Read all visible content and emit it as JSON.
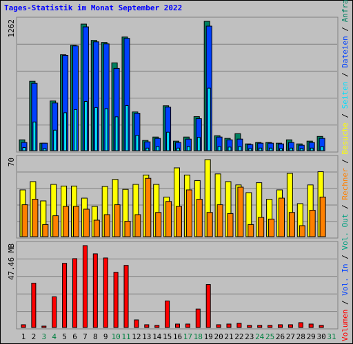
{
  "title": "Tages-Statistik im Monat September 2022",
  "categories": [
    "1",
    "2",
    "3",
    "4",
    "5",
    "6",
    "7",
    "8",
    "9",
    "10",
    "11",
    "12",
    "13",
    "14",
    "15",
    "16",
    "17",
    "18",
    "19",
    "20",
    "21",
    "22",
    "23",
    "24",
    "25",
    "26",
    "27",
    "28",
    "29",
    "30",
    "31"
  ],
  "category_colors": [
    "#000000",
    "#000000",
    "#008040",
    "#008040",
    "#000000",
    "#000000",
    "#000000",
    "#000000",
    "#000000",
    "#008040",
    "#008040",
    "#000000",
    "#000000",
    "#000000",
    "#000000",
    "#000000",
    "#008040",
    "#008040",
    "#000000",
    "#000000",
    "#000000",
    "#000000",
    "#000000",
    "#008040",
    "#008040",
    "#000000",
    "#000000",
    "#000000",
    "#000000",
    "#000000",
    "#008040"
  ],
  "legend_separator": " / ",
  "chart_data": [
    {
      "type": "bar",
      "ylim": [
        0,
        1262
      ],
      "yticks": [
        1262
      ],
      "series": [
        {
          "name": "Anfragen",
          "color": "#008060",
          "values": [
            106,
            677,
            73,
            485,
            936,
            1029,
            1235,
            1076,
            1056,
            857,
            1109,
            378,
            100,
            133,
            438,
            93,
            133,
            332,
            1262,
            146,
            120,
            166,
            66,
            80,
            80,
            73,
            106,
            66,
            93,
            139,
            null
          ]
        },
        {
          "name": "Dateien",
          "color": "#0040ff",
          "values": [
            80,
            657,
            73,
            465,
            930,
            1022,
            1208,
            1062,
            1042,
            803,
            1096,
            365,
            86,
            120,
            425,
            80,
            113,
            312,
            1215,
            133,
            106,
            113,
            60,
            73,
            73,
            66,
            80,
            53,
            80,
            120,
            null
          ]
        },
        {
          "name": "Seiten",
          "color": "#00e0ff",
          "values": [
            30,
            280,
            20,
            200,
            370,
            400,
            480,
            420,
            410,
            330,
            440,
            150,
            25,
            40,
            180,
            25,
            40,
            130,
            610,
            40,
            35,
            40,
            20,
            25,
            25,
            20,
            25,
            20,
            25,
            40,
            null
          ]
        }
      ]
    },
    {
      "type": "bar",
      "ylim": [
        0,
        70
      ],
      "yticks": [
        70
      ],
      "series": [
        {
          "name": "Besuche",
          "color": "#ffff00",
          "values": [
            42.5,
            50,
            32.5,
            47.5,
            46,
            46,
            35,
            27.5,
            45.6,
            52,
            43,
            47.5,
            56,
            47.5,
            36,
            62.5,
            56,
            51,
            70,
            57,
            50,
            47,
            40,
            49,
            34,
            42.5,
            57.5,
            30,
            47,
            59,
            null
          ]
        },
        {
          "name": "Rechner",
          "color": "#ff8000",
          "values": [
            29,
            34,
            11,
            19,
            27.5,
            27.5,
            25,
            15,
            20,
            29,
            14,
            20,
            53,
            22,
            32,
            27.5,
            42.5,
            34,
            22,
            29,
            21,
            45,
            11,
            17.5,
            16,
            35,
            22,
            10,
            24,
            36,
            null
          ]
        }
      ]
    },
    {
      "type": "bar",
      "ylim": [
        0,
        47.46
      ],
      "yticks": [
        {
          "value": 47.46,
          "label": "47.46 MB"
        }
      ],
      "series": [
        {
          "name": "Vol. Out",
          "color": "#00a080",
          "values": [
            null,
            null,
            null,
            null,
            null,
            null,
            null,
            null,
            null,
            null,
            null,
            null,
            null,
            null,
            null,
            null,
            null,
            null,
            null,
            null,
            null,
            null,
            null,
            null,
            null,
            null,
            null,
            null,
            null,
            null,
            null
          ]
        },
        {
          "name": "Vol. In",
          "color": "#0040ff",
          "values": [
            null,
            null,
            null,
            null,
            null,
            null,
            null,
            null,
            null,
            null,
            null,
            null,
            null,
            null,
            null,
            null,
            null,
            null,
            null,
            null,
            null,
            null,
            null,
            null,
            null,
            null,
            null,
            null,
            null,
            null,
            null
          ]
        },
        {
          "name": "Volumen",
          "color": "#ff0000",
          "values": [
            1.6,
            25.7,
            0.8,
            17.8,
            37.2,
            39.9,
            47.46,
            42.7,
            40.3,
            32,
            36,
            4.4,
            1.6,
            1.2,
            15.4,
            2,
            2,
            10.7,
            24.9,
            1.6,
            2,
            2.4,
            1.2,
            1.2,
            1.2,
            1.6,
            1.6,
            2.8,
            2,
            1.2,
            null
          ]
        }
      ]
    }
  ]
}
